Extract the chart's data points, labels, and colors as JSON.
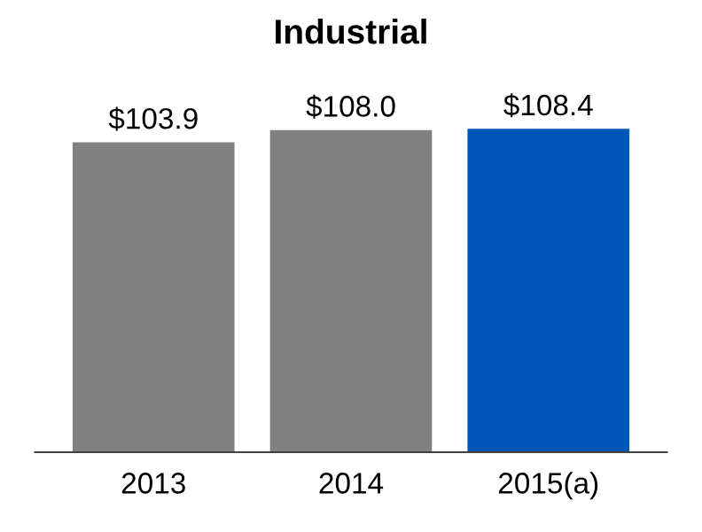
{
  "chart_data": {
    "type": "bar",
    "title": "Industrial",
    "categories": [
      "2013",
      "2014",
      "2015(a)"
    ],
    "values": [
      103.9,
      108.0,
      108.4
    ],
    "colors": [
      "#808080",
      "#808080",
      "#0057b8"
    ],
    "value_labels": [
      "$103.9",
      "$108.0",
      "$108.4"
    ]
  }
}
